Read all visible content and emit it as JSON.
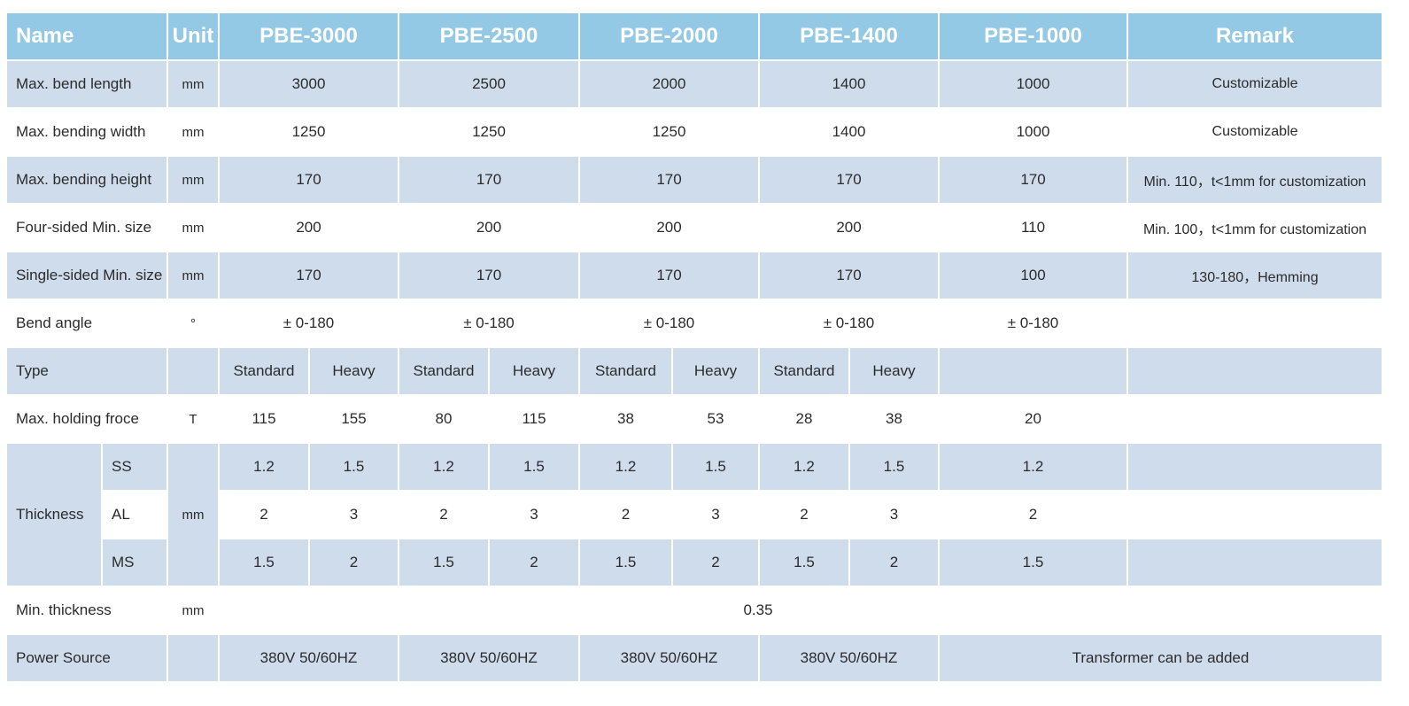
{
  "table": {
    "header": [
      "Name",
      "Unit",
      "PBE-3000",
      "PBE-2500",
      "PBE-2000",
      "PBE-1400",
      "PBE-1000",
      "Remark"
    ],
    "rows": [
      [
        "Max. bend length",
        "mm",
        "3000",
        "2500",
        "2000",
        "1400",
        "1000",
        "Customizable"
      ],
      [
        "Max. bending width",
        "mm",
        "1250",
        "1250",
        "1250",
        "1400",
        "1000",
        "Customizable"
      ],
      [
        "Max. bending height",
        "mm",
        "170",
        "170",
        "170",
        "170",
        "170",
        "Min. 110，t<1mm  for  customization"
      ],
      [
        "Four-sided Min. size",
        "mm",
        "200",
        "200",
        "200",
        "200",
        "110",
        "Min. 100，t<1mm for  customization"
      ],
      [
        "Single-sided Min. size",
        "mm",
        "170",
        "170",
        "170",
        "170",
        "100",
        "130-180，Hemming"
      ],
      [
        "Bend angle",
        "°",
        "± 0-180",
        "± 0-180",
        "± 0-180",
        "± 0-180",
        "± 0-180"
      ],
      [
        "Type",
        "Standard",
        "Heavy",
        "Standard",
        "Heavy",
        "Standard",
        "Heavy",
        "Standard",
        "Heavy"
      ],
      [
        "Max. holding froce",
        "T",
        "115",
        "155",
        "80",
        "115",
        "38",
        "53",
        "28",
        "38",
        "20"
      ],
      [
        "Thickness",
        "SS",
        "mm",
        "1.2",
        "1.5",
        "1.2",
        "1.5",
        "1.2",
        "1.5",
        "1.2",
        "1.5",
        "1.2"
      ],
      [
        "AL",
        "2",
        "3",
        "2",
        "3",
        "2",
        "3",
        "2",
        "3",
        "2"
      ],
      [
        "MS",
        "1.5",
        "2",
        "1.5",
        "2",
        "1.5",
        "2",
        "1.5",
        "2",
        "1.5"
      ],
      [
        "Min. thickness",
        "mm",
        "0.35"
      ],
      [
        "Power Source",
        "380V 50/60HZ",
        "380V 50/60HZ",
        "380V 50/60HZ",
        "380V 50/60HZ",
        "Transformer can be added"
      ]
    ]
  }
}
